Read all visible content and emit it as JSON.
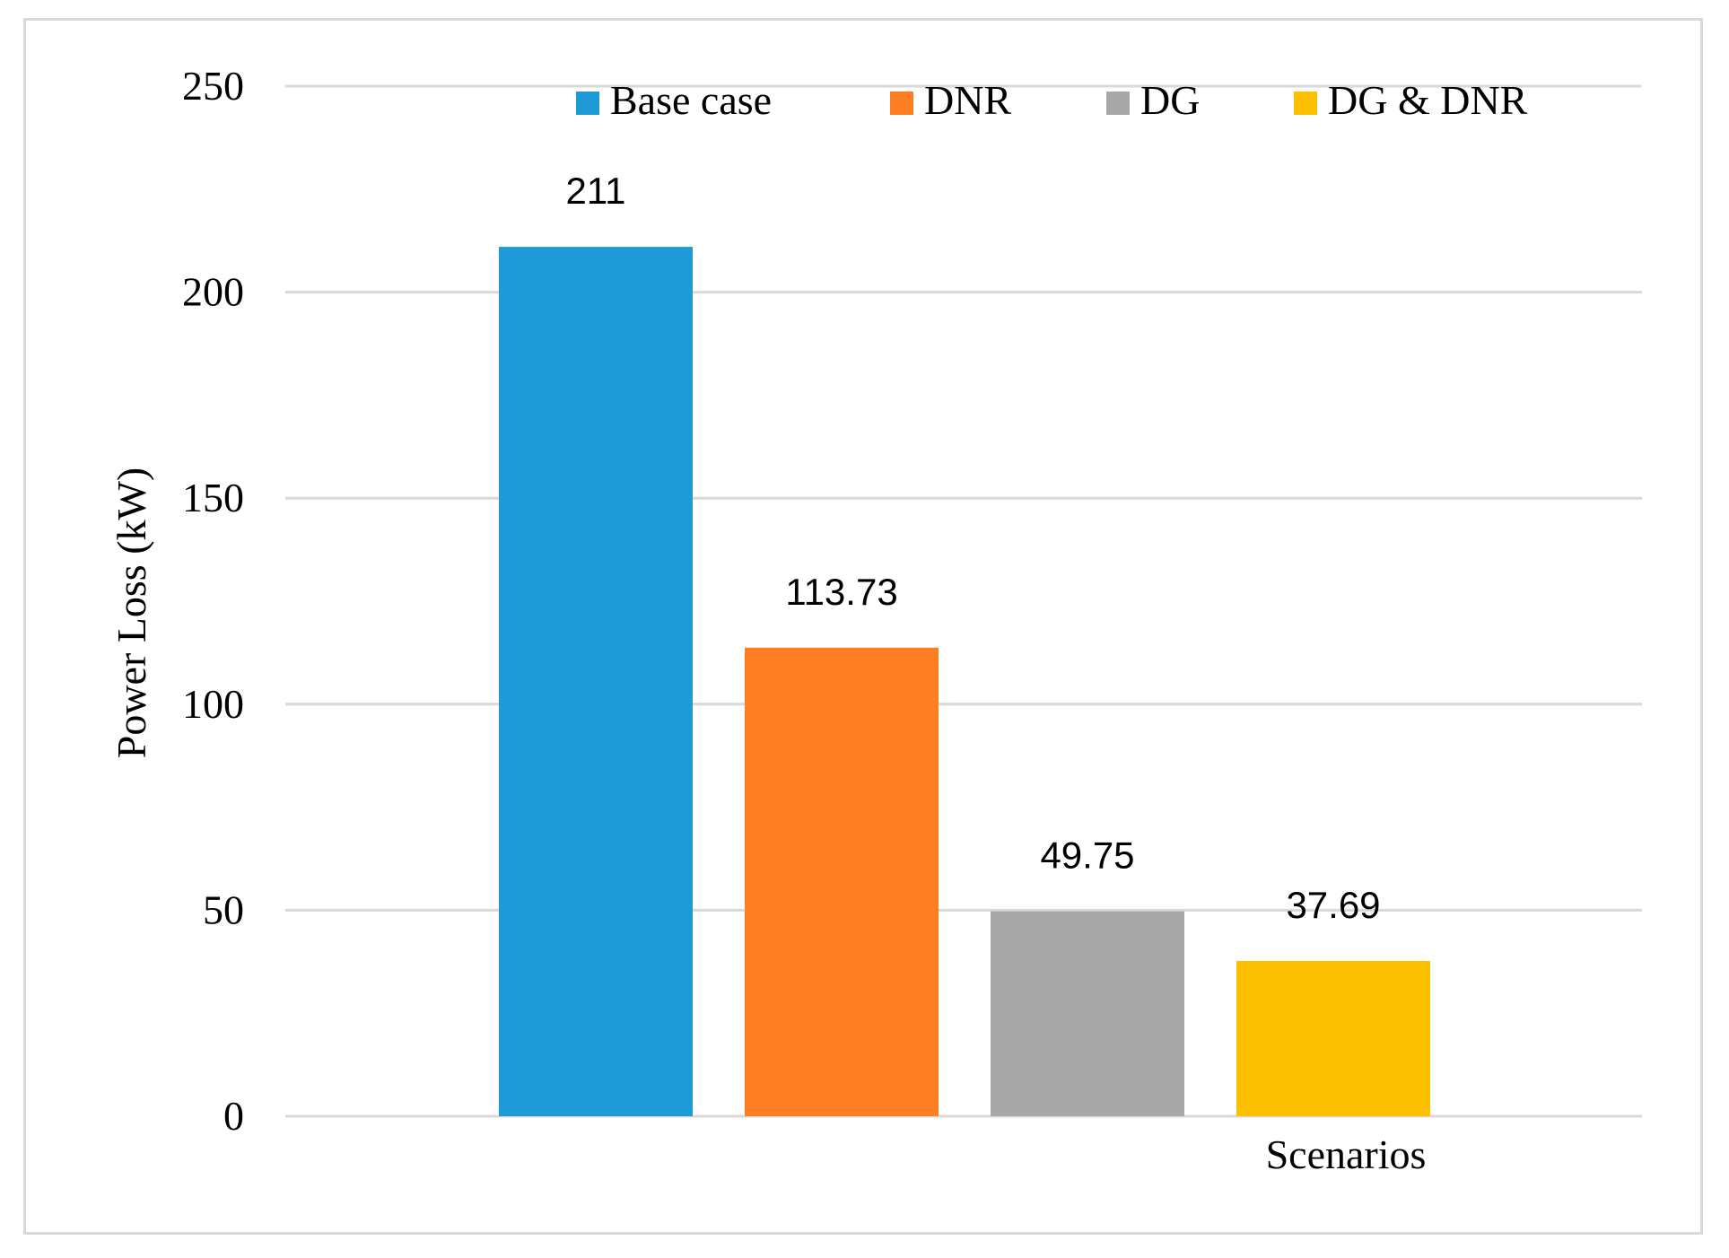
{
  "chart_data": {
    "type": "bar",
    "title": "",
    "xlabel": "Scenarios",
    "ylabel": "Power Loss (kW)",
    "ylim": [
      0,
      250
    ],
    "yticks": [
      0,
      50,
      100,
      150,
      200,
      250
    ],
    "grid": true,
    "legend_position": "top",
    "categories": [
      "Base case",
      "DNR",
      "DG",
      "DG & DNR"
    ],
    "values": [
      211,
      113.73,
      49.75,
      37.69
    ],
    "data_labels": [
      "211",
      "113.73",
      "49.75",
      "37.69"
    ],
    "colors": [
      "#1e9bd7",
      "#fe7f23",
      "#a8a8a8",
      "#fdc000"
    ]
  }
}
